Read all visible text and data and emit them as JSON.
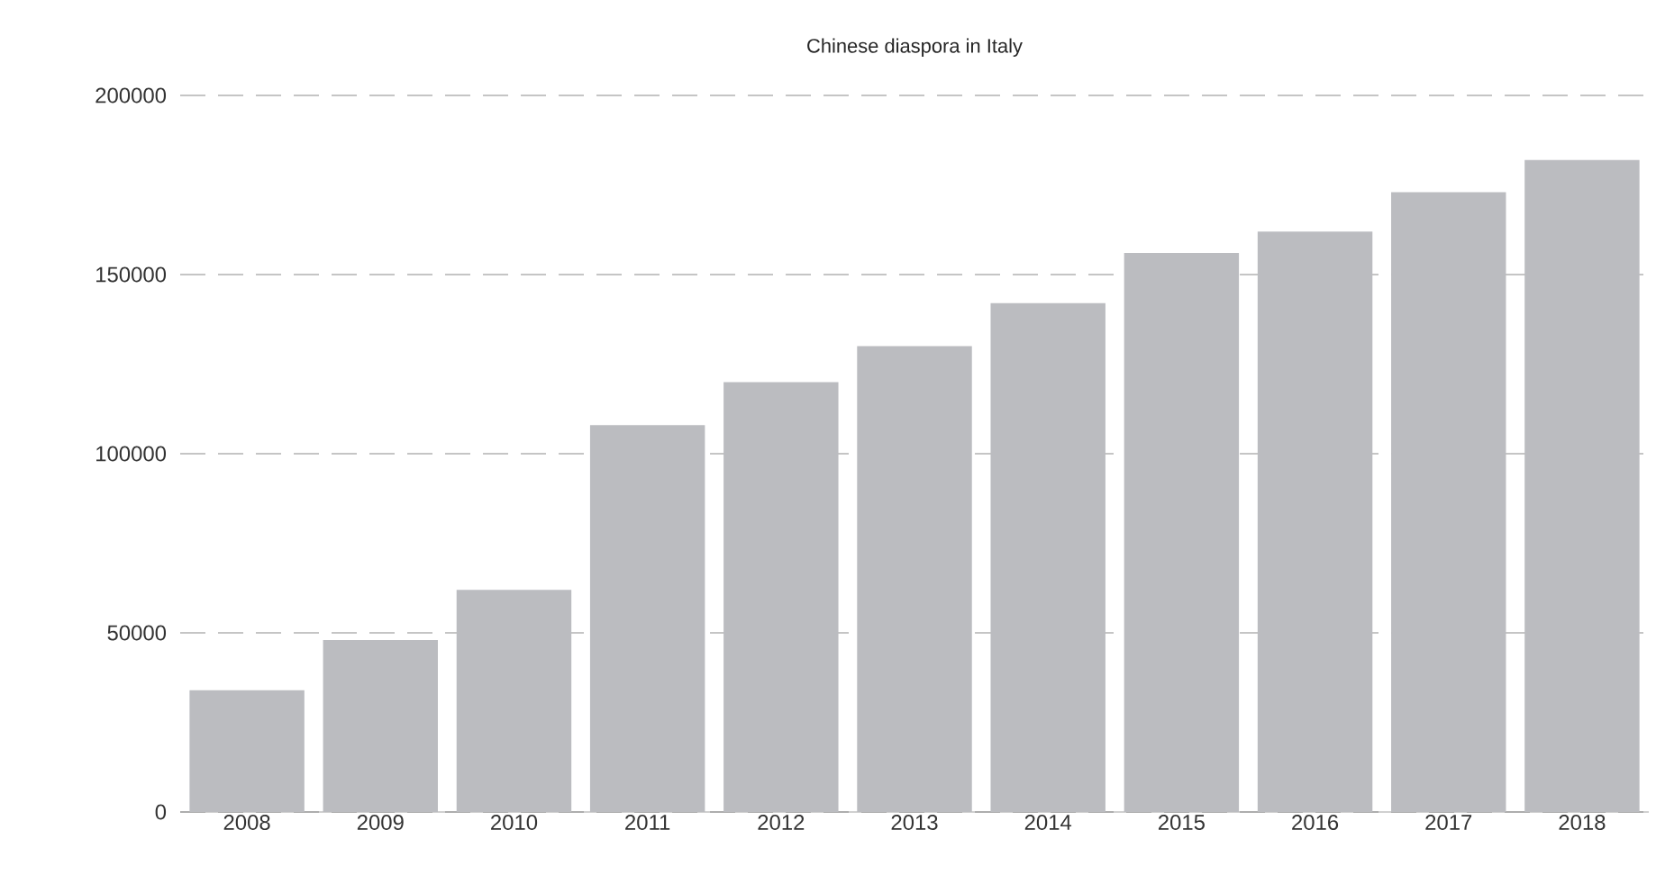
{
  "chart_data": {
    "type": "bar",
    "title": "Chinese diaspora in Italy",
    "categories": [
      "2008",
      "2009",
      "2010",
      "2011",
      "2012",
      "2013",
      "2014",
      "2015",
      "2016",
      "2017",
      "2018"
    ],
    "values": [
      34000,
      48000,
      62000,
      108000,
      120000,
      130000,
      142000,
      156000,
      162000,
      173000,
      182000
    ],
    "color": "#bbbcc0",
    "ylim": [
      0,
      200000
    ],
    "yticks": [
      0,
      50000,
      100000,
      150000,
      200000
    ],
    "grid": "y"
  }
}
